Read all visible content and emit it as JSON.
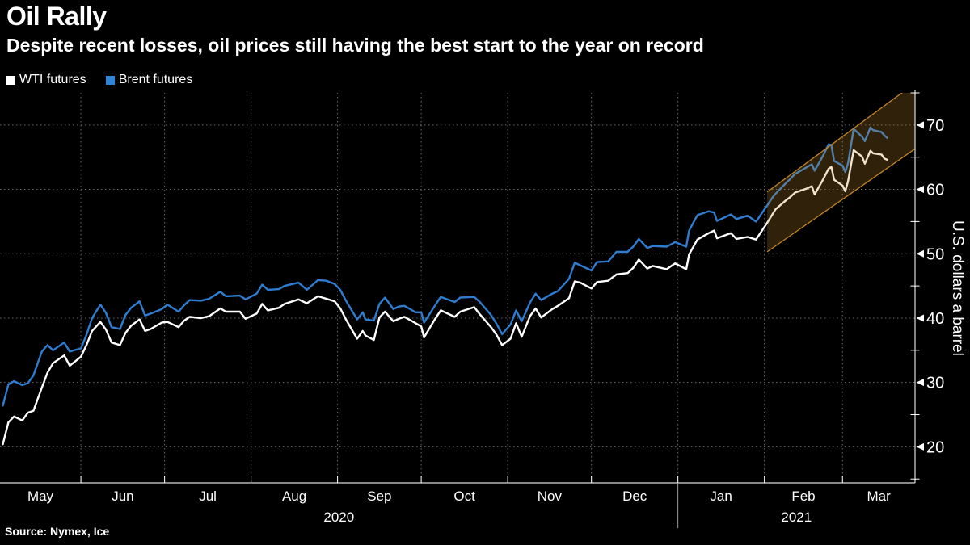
{
  "header": {
    "title": "Oil Rally",
    "subtitle": "Despite recent losses, oil prices still having the best start to the year on record"
  },
  "legend": [
    {
      "label": "WTI futures",
      "color": "#ffffff"
    },
    {
      "label": "Brent futures",
      "color": "#2e86d8"
    }
  ],
  "footer": {
    "source": "Source: Nymex, Ice"
  },
  "chart_data": {
    "type": "line",
    "title": "Oil Rally",
    "subtitle": "Despite recent losses, oil prices still having the best start to the year on record",
    "ylabel": "U.S. dollars a barrel",
    "ylim": [
      14.4,
      75
    ],
    "grid": true,
    "legend_position": "top-left",
    "x_domain": [
      "2020-05-03",
      "2021-03-27"
    ],
    "y_ticks": [
      20,
      30,
      40,
      50,
      60,
      70
    ],
    "y_minor_ticks": [
      15,
      25,
      35,
      45,
      55,
      65,
      75
    ],
    "month_ticks": [
      "2020-06-01",
      "2020-07-01",
      "2020-08-01",
      "2020-09-01",
      "2020-10-01",
      "2020-11-01",
      "2020-12-01",
      "2021-01-01",
      "2021-02-01",
      "2021-03-01"
    ],
    "month_labels": [
      "May",
      "Jun",
      "Jul",
      "Aug",
      "Sep",
      "Oct",
      "Nov",
      "Dec",
      "Jan",
      "Feb",
      "Mar"
    ],
    "year_labels": [
      {
        "text": "2020",
        "from": "2020-05-03",
        "to": "2021-01-01"
      },
      {
        "text": "2021",
        "from": "2021-01-01",
        "to": "2021-03-27"
      }
    ],
    "year_divider": "2021-01-01",
    "dates": [
      "2020-05-04",
      "2020-05-06",
      "2020-05-08",
      "2020-05-11",
      "2020-05-13",
      "2020-05-15",
      "2020-05-18",
      "2020-05-20",
      "2020-05-22",
      "2020-05-26",
      "2020-05-28",
      "2020-06-01",
      "2020-06-03",
      "2020-06-05",
      "2020-06-08",
      "2020-06-10",
      "2020-06-12",
      "2020-06-15",
      "2020-06-17",
      "2020-06-19",
      "2020-06-22",
      "2020-06-24",
      "2020-06-26",
      "2020-06-30",
      "2020-07-02",
      "2020-07-06",
      "2020-07-08",
      "2020-07-10",
      "2020-07-14",
      "2020-07-17",
      "2020-07-21",
      "2020-07-23",
      "2020-07-28",
      "2020-07-30",
      "2020-08-03",
      "2020-08-05",
      "2020-08-07",
      "2020-08-11",
      "2020-08-13",
      "2020-08-18",
      "2020-08-21",
      "2020-08-25",
      "2020-08-28",
      "2020-08-31",
      "2020-09-02",
      "2020-09-04",
      "2020-09-08",
      "2020-09-10",
      "2020-09-11",
      "2020-09-14",
      "2020-09-16",
      "2020-09-18",
      "2020-09-21",
      "2020-09-23",
      "2020-09-25",
      "2020-09-29",
      "2020-10-01",
      "2020-10-02",
      "2020-10-06",
      "2020-10-08",
      "2020-10-13",
      "2020-10-15",
      "2020-10-20",
      "2020-10-22",
      "2020-10-26",
      "2020-10-28",
      "2020-10-30",
      "2020-11-02",
      "2020-11-04",
      "2020-11-06",
      "2020-11-09",
      "2020-11-11",
      "2020-11-13",
      "2020-11-17",
      "2020-11-19",
      "2020-11-23",
      "2020-11-25",
      "2020-11-27",
      "2020-12-01",
      "2020-12-03",
      "2020-12-07",
      "2020-12-10",
      "2020-12-14",
      "2020-12-16",
      "2020-12-18",
      "2020-12-21",
      "2020-12-23",
      "2020-12-28",
      "2020-12-31",
      "2021-01-04",
      "2021-01-05",
      "2021-01-08",
      "2021-01-12",
      "2021-01-14",
      "2021-01-15",
      "2021-01-20",
      "2021-01-22",
      "2021-01-26",
      "2021-01-29",
      "2021-02-02",
      "2021-02-04",
      "2021-02-05",
      "2021-02-09",
      "2021-02-10",
      "2021-02-12",
      "2021-02-16",
      "2021-02-18",
      "2021-02-19",
      "2021-02-22",
      "2021-02-24",
      "2021-02-25",
      "2021-02-26",
      "2021-03-01",
      "2021-03-02",
      "2021-03-03",
      "2021-03-05",
      "2021-03-08",
      "2021-03-09",
      "2021-03-11",
      "2021-03-12",
      "2021-03-15",
      "2021-03-16",
      "2021-03-17"
    ],
    "series": [
      {
        "name": "WTI futures",
        "color": "#ffffff",
        "values": [
          20.4,
          23.8,
          24.7,
          24.1,
          25.3,
          25.6,
          29.2,
          31.5,
          33.0,
          34.2,
          32.6,
          34.0,
          35.8,
          38.0,
          39.4,
          38.2,
          36.2,
          35.8,
          37.7,
          38.8,
          39.8,
          38.0,
          38.3,
          39.3,
          39.4,
          38.6,
          39.6,
          40.2,
          40.0,
          40.3,
          41.5,
          41.0,
          41.0,
          39.9,
          40.7,
          42.2,
          41.2,
          41.6,
          42.2,
          42.9,
          42.3,
          43.4,
          43.0,
          42.6,
          41.5,
          39.8,
          36.8,
          38.0,
          37.3,
          36.6,
          40.1,
          41.0,
          39.5,
          39.9,
          40.2,
          39.2,
          38.7,
          37.0,
          39.9,
          41.2,
          40.2,
          41.0,
          41.7,
          40.6,
          38.6,
          37.4,
          35.8,
          36.8,
          39.2,
          37.1,
          40.3,
          41.5,
          40.1,
          41.4,
          41.9,
          43.1,
          45.7,
          45.5,
          44.6,
          45.6,
          45.8,
          46.8,
          47.0,
          47.8,
          49.1,
          47.7,
          48.1,
          47.6,
          48.5,
          47.6,
          49.9,
          52.2,
          53.2,
          53.6,
          52.4,
          53.2,
          52.3,
          52.6,
          52.2,
          54.8,
          56.2,
          56.9,
          58.4,
          58.7,
          59.5,
          60.1,
          60.5,
          59.2,
          61.5,
          63.2,
          63.5,
          61.5,
          60.6,
          59.7,
          61.3,
          66.1,
          65.1,
          64.0,
          66.0,
          65.6,
          65.4,
          64.8,
          64.6
        ]
      },
      {
        "name": "Brent futures",
        "color": "#2e7dd1",
        "values": [
          26.4,
          29.7,
          30.2,
          29.6,
          29.9,
          31.1,
          34.8,
          35.8,
          35.0,
          36.2,
          34.8,
          35.3,
          37.4,
          40.0,
          42.1,
          40.8,
          38.6,
          38.3,
          40.5,
          41.6,
          42.6,
          40.4,
          40.7,
          41.4,
          42.1,
          41.0,
          42.0,
          42.8,
          42.7,
          43.0,
          44.1,
          43.4,
          43.5,
          42.9,
          43.8,
          45.2,
          44.4,
          44.5,
          45.0,
          45.5,
          44.4,
          45.9,
          45.8,
          45.3,
          44.4,
          42.7,
          39.8,
          40.9,
          39.8,
          39.6,
          42.2,
          43.2,
          41.4,
          41.8,
          41.9,
          40.9,
          40.9,
          39.3,
          42.0,
          43.3,
          42.5,
          43.2,
          43.3,
          42.5,
          40.5,
          39.1,
          37.5,
          39.0,
          41.2,
          39.5,
          42.4,
          43.8,
          42.8,
          43.8,
          44.2,
          46.1,
          48.6,
          48.2,
          47.4,
          48.7,
          48.8,
          50.3,
          50.3,
          51.1,
          52.3,
          50.9,
          51.2,
          51.1,
          51.8,
          51.1,
          53.6,
          56.0,
          56.6,
          56.4,
          55.1,
          56.1,
          55.4,
          55.9,
          55.0,
          57.5,
          58.8,
          59.3,
          61.1,
          61.5,
          62.4,
          63.4,
          63.9,
          62.9,
          65.2,
          67.0,
          66.9,
          64.4,
          63.7,
          62.7,
          64.1,
          69.4,
          68.2,
          67.5,
          69.6,
          69.2,
          68.9,
          68.4,
          68.0
        ]
      }
    ],
    "trend_channel": {
      "from": "2021-02-02",
      "to": "2021-03-27",
      "upper": [
        59.6,
        76.5
      ],
      "lower": [
        50.3,
        66.3
      ],
      "fill": "rgba(199,138,43,0.24)",
      "stroke": "#c08427"
    },
    "colors": {
      "background": "#000000",
      "grid": "#8c8c8c",
      "axis": "#d9d9d9",
      "tick_label": "#ffffff",
      "year_divider": "#999999"
    }
  }
}
